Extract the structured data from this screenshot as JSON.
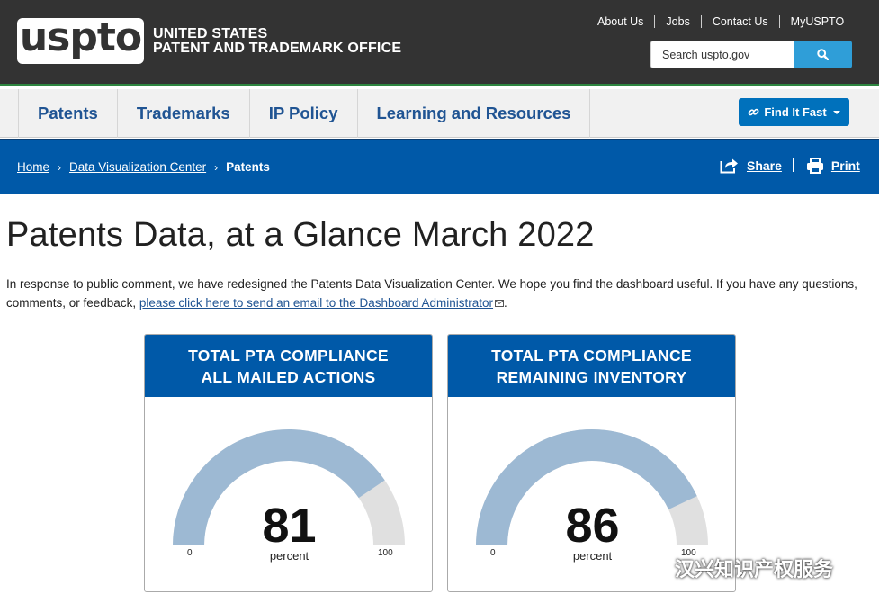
{
  "header": {
    "logo_text": "uspto",
    "agency_line1": "UNITED STATES",
    "agency_line2": "PATENT AND TRADEMARK OFFICE",
    "utility_links": [
      "About Us",
      "Jobs",
      "Contact Us",
      "MyUSPTO"
    ],
    "search_placeholder": "Search uspto.gov"
  },
  "nav": {
    "items": [
      "Patents",
      "Trademarks",
      "IP Policy",
      "Learning and Resources"
    ],
    "find_it_fast": "Find It Fast"
  },
  "breadcrumb": {
    "home": "Home",
    "section": "Data Visualization Center",
    "current": "Patents",
    "share": "Share",
    "print": "Print"
  },
  "content": {
    "title": "Patents Data, at a Glance March 2022",
    "intro_text": "In response to public comment, we have redesigned the Patents Data Visualization Center. We hope you find the dashboard useful. If you have any questions, comments, or feedback, ",
    "intro_link": "please click here to send an email to the Dashboard Administrator",
    "intro_end": "."
  },
  "gauges": [
    {
      "title_line1": "TOTAL PTA COMPLIANCE",
      "title_line2": "ALL MAILED ACTIONS",
      "value": "81",
      "unit": "percent",
      "min": "0",
      "max": "100"
    },
    {
      "title_line1": "TOTAL PTA COMPLIANCE",
      "title_line2": "REMAINING INVENTORY",
      "value": "86",
      "unit": "percent",
      "min": "0",
      "max": "100"
    }
  ],
  "colors": {
    "brand_dark": "#333333",
    "brand_blue": "#0059a8",
    "nav_text": "#205493",
    "gauge_fill": "#9db9d3",
    "gauge_track": "#e0e0e0"
  },
  "watermark": "汉兴知识产权服务"
}
